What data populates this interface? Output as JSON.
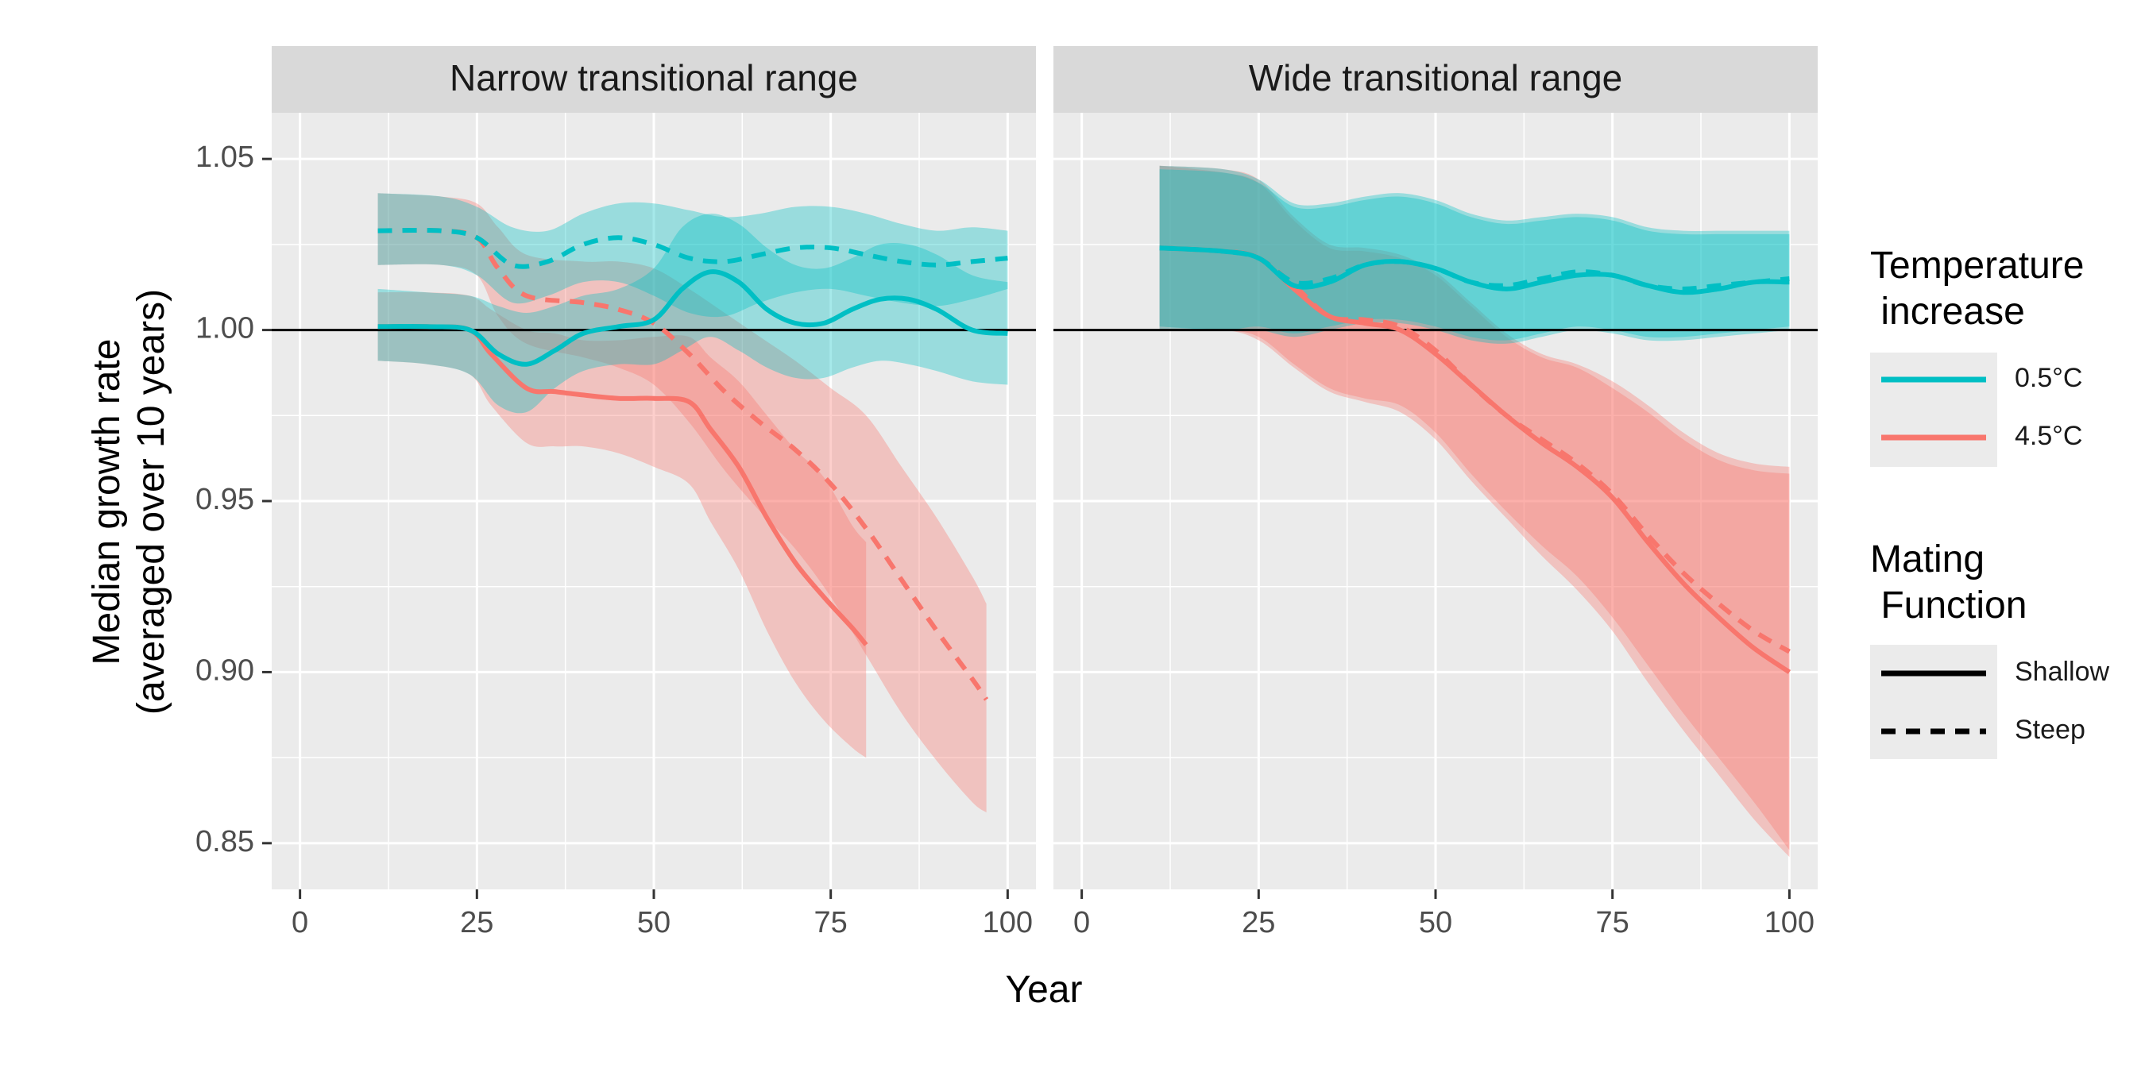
{
  "chart_data": {
    "type": "line",
    "ylabel": "Median growth rate\n(averaged over 10 years)",
    "xlabel": "Year",
    "xlim": [
      -4,
      104
    ],
    "ylim": [
      0.8365,
      1.0635
    ],
    "x_ticks": [
      0,
      25,
      50,
      75,
      100
    ],
    "y_ticks": [
      0.85,
      0.9,
      0.95,
      1.0,
      1.05
    ],
    "y_tick_labels": [
      "0.85",
      "0.90",
      "0.95",
      "1.00",
      "1.05"
    ],
    "reference_line_y": 1.0,
    "grid": true,
    "legend_position": "right",
    "colors": {
      "0.5°C": "#00BFC4",
      "4.5°C": "#F8766D",
      "panel_bg": "#EBEBEB",
      "strip_bg": "#D9D9D9"
    },
    "legend": {
      "temperature": {
        "title": "Temperature\n increase",
        "items": [
          "0.5°C",
          "4.5°C"
        ]
      },
      "mating": {
        "title": "Mating\n Function",
        "items": [
          "Shallow",
          "Steep"
        ]
      }
    },
    "panels": [
      {
        "title": "Narrow transitional range",
        "series": [
          {
            "temperature": "4.5°C",
            "mating": "Steep",
            "x": [
              11,
              20,
              25,
              28,
              32,
              40,
              45,
              50,
              55,
              60,
              65,
              70,
              75,
              80,
              85,
              90,
              95,
              97
            ],
            "y": [
              1.029,
              1.029,
              1.027,
              1.018,
              1.01,
              1.008,
              1.006,
              1.002,
              0.993,
              0.982,
              0.973,
              0.965,
              0.955,
              0.942,
              0.927,
              0.912,
              0.898,
              0.892
            ],
            "lower": [
              1.019,
              1.019,
              1.016,
              1.004,
              0.996,
              0.992,
              0.989,
              0.984,
              0.973,
              0.959,
              0.947,
              0.936,
              0.922,
              0.905,
              0.888,
              0.874,
              0.862,
              0.859
            ],
            "upper": [
              1.04,
              1.039,
              1.037,
              1.03,
              1.022,
              1.02,
              1.02,
              1.018,
              1.012,
              1.005,
              0.998,
              0.991,
              0.983,
              0.975,
              0.96,
              0.945,
              0.928,
              0.92
            ]
          },
          {
            "temperature": "4.5°C",
            "mating": "Shallow",
            "x": [
              11,
              18,
              24,
              27,
              32,
              36,
              40,
              45,
              50,
              55,
              58,
              62,
              66,
              70,
              74,
              78,
              80
            ],
            "y": [
              1.001,
              1.001,
              1.0,
              0.993,
              0.983,
              0.982,
              0.981,
              0.98,
              0.98,
              0.979,
              0.971,
              0.96,
              0.945,
              0.932,
              0.922,
              0.913,
              0.908
            ],
            "lower": [
              0.991,
              0.99,
              0.987,
              0.978,
              0.967,
              0.966,
              0.966,
              0.964,
              0.96,
              0.955,
              0.944,
              0.93,
              0.912,
              0.897,
              0.886,
              0.878,
              0.875
            ],
            "upper": [
              1.011,
              1.011,
              1.01,
              1.006,
              1.0,
              0.999,
              0.997,
              0.997,
              0.998,
              0.998,
              0.992,
              0.985,
              0.975,
              0.965,
              0.957,
              0.943,
              0.938
            ]
          },
          {
            "temperature": "0.5°C",
            "mating": "Steep",
            "x": [
              11,
              20,
              25,
              30,
              35,
              40,
              45,
              50,
              55,
              60,
              65,
              70,
              75,
              80,
              85,
              90,
              95,
              100
            ],
            "y": [
              1.029,
              1.029,
              1.027,
              1.019,
              1.02,
              1.025,
              1.027,
              1.025,
              1.021,
              1.02,
              1.022,
              1.024,
              1.024,
              1.022,
              1.02,
              1.019,
              1.02,
              1.021
            ],
            "lower": [
              1.019,
              1.019,
              1.016,
              1.008,
              1.01,
              1.014,
              1.014,
              1.01,
              1.005,
              1.004,
              1.008,
              1.011,
              1.012,
              1.01,
              1.008,
              1.007,
              1.009,
              1.012
            ],
            "upper": [
              1.04,
              1.039,
              1.036,
              1.03,
              1.029,
              1.034,
              1.037,
              1.037,
              1.035,
              1.033,
              1.034,
              1.036,
              1.036,
              1.034,
              1.031,
              1.029,
              1.03,
              1.029
            ]
          },
          {
            "temperature": "0.5°C",
            "mating": "Shallow",
            "x": [
              11,
              18,
              24,
              28,
              32,
              36,
              40,
              45,
              50,
              54,
              58,
              62,
              66,
              70,
              74,
              78,
              82,
              86,
              90,
              95,
              100
            ],
            "y": [
              1.001,
              1.001,
              1.0,
              0.993,
              0.99,
              0.994,
              0.999,
              1.001,
              1.003,
              1.012,
              1.017,
              1.014,
              1.006,
              1.002,
              1.002,
              1.006,
              1.009,
              1.009,
              1.006,
              1.0,
              0.999
            ],
            "lower": [
              0.991,
              0.99,
              0.987,
              0.978,
              0.976,
              0.983,
              0.988,
              0.99,
              0.99,
              0.994,
              0.998,
              0.994,
              0.989,
              0.986,
              0.986,
              0.989,
              0.991,
              0.99,
              0.988,
              0.985,
              0.984
            ],
            "upper": [
              1.012,
              1.011,
              1.01,
              1.007,
              1.005,
              1.007,
              1.01,
              1.012,
              1.018,
              1.03,
              1.034,
              1.031,
              1.024,
              1.019,
              1.018,
              1.021,
              1.025,
              1.025,
              1.022,
              1.016,
              1.014
            ]
          }
        ]
      },
      {
        "title": "Wide transitional range",
        "series": [
          {
            "temperature": "4.5°C",
            "mating": "Steep",
            "x": [
              11,
              20,
              25,
              30,
              35,
              40,
              45,
              50,
              55,
              60,
              65,
              70,
              75,
              80,
              85,
              90,
              95,
              100
            ],
            "y": [
              1.024,
              1.023,
              1.021,
              1.013,
              1.004,
              1.003,
              1.001,
              0.994,
              0.984,
              0.975,
              0.968,
              0.961,
              0.952,
              0.94,
              0.929,
              0.92,
              0.912,
              0.906
            ],
            "lower": [
              1.001,
              1.0,
              0.998,
              0.99,
              0.983,
              0.98,
              0.978,
              0.97,
              0.958,
              0.947,
              0.937,
              0.928,
              0.916,
              0.902,
              0.888,
              0.875,
              0.862,
              0.848
            ],
            "upper": [
              1.048,
              1.047,
              1.044,
              1.033,
              1.025,
              1.024,
              1.022,
              1.017,
              1.008,
              0.999,
              0.993,
              0.99,
              0.985,
              0.978,
              0.97,
              0.964,
              0.961,
              0.96
            ]
          },
          {
            "temperature": "4.5°C",
            "mating": "Shallow",
            "x": [
              11,
              20,
              25,
              30,
              35,
              40,
              45,
              50,
              55,
              60,
              65,
              70,
              75,
              80,
              85,
              90,
              95,
              100
            ],
            "y": [
              1.024,
              1.023,
              1.021,
              1.012,
              1.004,
              1.002,
              1.0,
              0.993,
              0.984,
              0.975,
              0.967,
              0.96,
              0.951,
              0.938,
              0.926,
              0.916,
              0.907,
              0.9
            ],
            "lower": [
              1.0,
              1.0,
              0.997,
              0.989,
              0.982,
              0.979,
              0.976,
              0.968,
              0.956,
              0.945,
              0.934,
              0.924,
              0.912,
              0.897,
              0.883,
              0.87,
              0.857,
              0.846
            ],
            "upper": [
              1.048,
              1.046,
              1.043,
              1.032,
              1.024,
              1.023,
              1.021,
              1.016,
              1.007,
              0.998,
              0.992,
              0.989,
              0.983,
              0.976,
              0.968,
              0.962,
              0.959,
              0.958
            ]
          },
          {
            "temperature": "0.5°C",
            "mating": "Steep",
            "x": [
              11,
              20,
              25,
              30,
              35,
              40,
              45,
              50,
              55,
              60,
              65,
              70,
              75,
              80,
              85,
              90,
              95,
              100
            ],
            "y": [
              1.024,
              1.023,
              1.021,
              1.014,
              1.015,
              1.019,
              1.02,
              1.018,
              1.014,
              1.013,
              1.015,
              1.017,
              1.016,
              1.013,
              1.012,
              1.013,
              1.014,
              1.015
            ],
            "lower": [
              1.001,
              1.0,
              1.001,
              0.999,
              1.001,
              1.003,
              1.003,
              1.001,
              0.998,
              0.997,
              0.999,
              1.001,
              1.0,
              0.998,
              0.998,
              0.999,
              1.0,
              1.001
            ],
            "upper": [
              1.048,
              1.047,
              1.044,
              1.037,
              1.037,
              1.039,
              1.04,
              1.038,
              1.034,
              1.032,
              1.033,
              1.034,
              1.033,
              1.03,
              1.029,
              1.029,
              1.029,
              1.029
            ]
          },
          {
            "temperature": "0.5°C",
            "mating": "Shallow",
            "x": [
              11,
              20,
              25,
              30,
              35,
              40,
              45,
              50,
              55,
              60,
              65,
              70,
              75,
              80,
              85,
              90,
              95,
              100
            ],
            "y": [
              1.024,
              1.023,
              1.021,
              1.013,
              1.014,
              1.019,
              1.02,
              1.018,
              1.014,
              1.012,
              1.014,
              1.016,
              1.016,
              1.013,
              1.011,
              1.012,
              1.014,
              1.014
            ],
            "lower": [
              1.0,
              1.0,
              1.0,
              0.998,
              1.0,
              1.002,
              1.002,
              1.0,
              0.997,
              0.996,
              0.998,
              1.0,
              0.999,
              0.997,
              0.997,
              0.998,
              0.999,
              1.0
            ],
            "upper": [
              1.047,
              1.046,
              1.043,
              1.036,
              1.036,
              1.038,
              1.039,
              1.037,
              1.033,
              1.031,
              1.032,
              1.033,
              1.032,
              1.029,
              1.028,
              1.028,
              1.028,
              1.028
            ]
          }
        ]
      }
    ]
  }
}
